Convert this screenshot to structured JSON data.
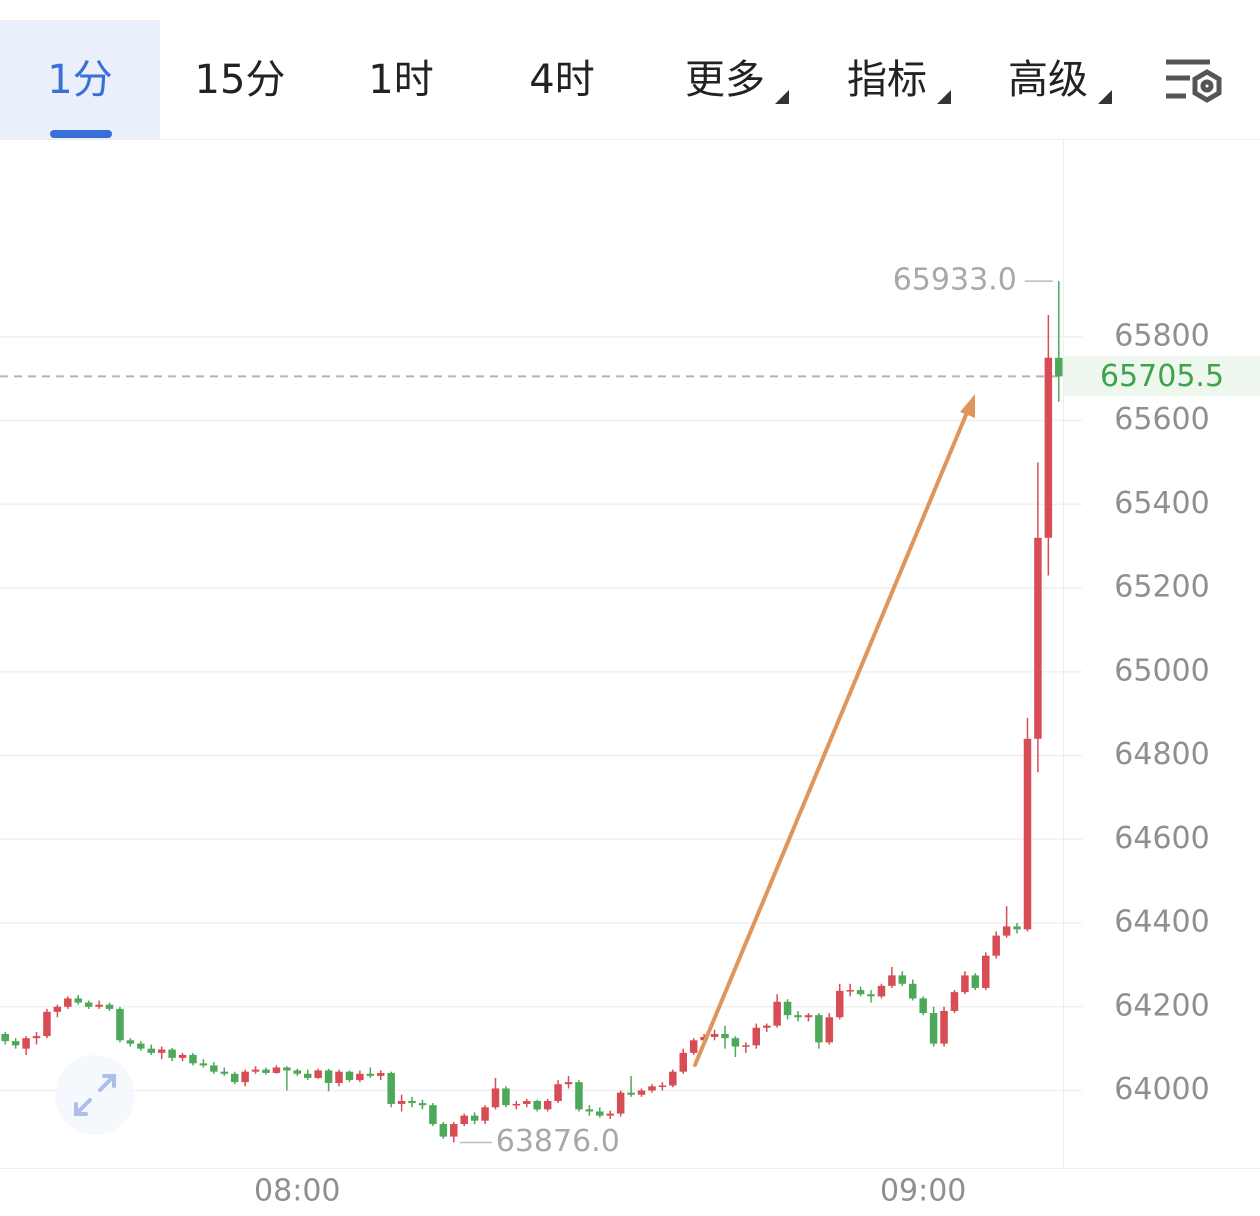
{
  "toolbar": {
    "tabs": [
      "1分",
      "15分",
      "1时",
      "4时",
      "更多",
      "指标",
      "高级"
    ]
  },
  "chart_data": {
    "type": "candlestick",
    "categories": [
      null,
      null,
      null,
      null,
      null,
      null,
      null,
      null,
      null,
      null,
      null,
      null,
      null,
      null,
      null,
      null,
      null,
      null,
      null,
      null,
      null,
      null,
      null,
      null,
      null,
      null,
      null,
      null,
      "08:00",
      null,
      null,
      null,
      null,
      null,
      null,
      null,
      null,
      null,
      null,
      null,
      null,
      null,
      null,
      null,
      null,
      null,
      null,
      null,
      null,
      null,
      null,
      null,
      null,
      null,
      null,
      null,
      null,
      null,
      null,
      null,
      null,
      null,
      null,
      null,
      null,
      null,
      null,
      null,
      null,
      null,
      null,
      null,
      null,
      null,
      null,
      null,
      null,
      null,
      null,
      null,
      null,
      null,
      null,
      null,
      null,
      null,
      null,
      null,
      "09:00",
      null,
      null,
      null,
      null,
      null,
      null,
      null,
      null,
      null,
      null,
      null,
      null,
      null
    ],
    "open": [
      64135,
      64118,
      64100,
      64125,
      64130,
      64188,
      64200,
      64220,
      64210,
      64200,
      64205,
      64195,
      64120,
      64112,
      64100,
      64090,
      64098,
      64078,
      64085,
      64065,
      64060,
      64045,
      64040,
      64020,
      64045,
      64050,
      64042,
      64055,
      64048,
      64040,
      64030,
      64048,
      64018,
      64045,
      64025,
      64040,
      64035,
      64042,
      63968,
      63975,
      63970,
      63965,
      63920,
      63890,
      63920,
      63940,
      63928,
      63960,
      64005,
      63965,
      63968,
      63975,
      63955,
      63975,
      64015,
      64020,
      63955,
      63950,
      63940,
      63945,
      63995,
      63990,
      64000,
      64010,
      64012,
      64045,
      64090,
      64120,
      64128,
      64135,
      64125,
      64105,
      64108,
      64150,
      64155,
      64212,
      64180,
      64175,
      64180,
      64115,
      64175,
      64238,
      64240,
      64230,
      64225,
      64250,
      64275,
      64255,
      64220,
      64185,
      64112,
      64190,
      64235,
      64275,
      64245,
      64322,
      64370,
      64392,
      64385,
      64840,
      65320,
      65750
    ],
    "high": [
      64140,
      64125,
      64130,
      64140,
      64195,
      64205,
      64225,
      64228,
      64215,
      64215,
      64210,
      64200,
      64125,
      64118,
      64110,
      64105,
      64102,
      64090,
      64090,
      64075,
      64068,
      64055,
      64045,
      64050,
      64058,
      64055,
      64060,
      64058,
      64052,
      64050,
      64052,
      64052,
      64050,
      64048,
      64048,
      64055,
      64048,
      64045,
      63990,
      63985,
      63978,
      63970,
      63925,
      63925,
      63945,
      63948,
      63965,
      64030,
      64010,
      63975,
      63980,
      63978,
      63980,
      64025,
      64035,
      64025,
      63965,
      63960,
      63952,
      64000,
      64035,
      64005,
      64015,
      64020,
      64050,
      64100,
      64125,
      64135,
      64145,
      64155,
      64130,
      64115,
      64160,
      64160,
      64230,
      64218,
      64190,
      64185,
      64185,
      64185,
      64255,
      64255,
      64248,
      64240,
      64255,
      64295,
      64285,
      64265,
      64225,
      64200,
      64200,
      64240,
      64285,
      64280,
      64330,
      64380,
      64440,
      64400,
      64890,
      65500,
      65852,
      65933
    ],
    "low": [
      64110,
      64100,
      64085,
      64110,
      64125,
      64175,
      64195,
      64205,
      64195,
      64195,
      64190,
      64115,
      64105,
      64095,
      64085,
      64075,
      64070,
      64070,
      64060,
      64055,
      64040,
      64035,
      64015,
      64010,
      64040,
      64038,
      64040,
      64000,
      64035,
      64025,
      64028,
      63998,
      64010,
      64020,
      64020,
      64030,
      64025,
      63960,
      63950,
      63960,
      63955,
      63915,
      63885,
      63876,
      63915,
      63920,
      63920,
      63955,
      63960,
      63955,
      63960,
      63950,
      63950,
      63970,
      64005,
      63950,
      63940,
      63935,
      63932,
      63938,
      63985,
      63985,
      63995,
      64000,
      64008,
      64040,
      64085,
      64110,
      64120,
      64100,
      64080,
      64090,
      64100,
      64140,
      64150,
      64170,
      64165,
      64165,
      64100,
      64110,
      64170,
      64225,
      64225,
      64210,
      64220,
      64245,
      64250,
      64215,
      64180,
      64105,
      64105,
      64185,
      64230,
      64240,
      64240,
      64315,
      64365,
      64375,
      64380,
      64760,
      65230,
      65645
    ],
    "close": [
      64118,
      64108,
      64125,
      64130,
      64188,
      64200,
      64220,
      64210,
      64200,
      64205,
      64195,
      64120,
      64112,
      64100,
      64090,
      64098,
      64078,
      64085,
      64065,
      64060,
      64045,
      64040,
      64020,
      64045,
      64050,
      64042,
      64055,
      64048,
      64040,
      64030,
      64048,
      64018,
      64045,
      64025,
      64040,
      64035,
      64042,
      63968,
      63975,
      63970,
      63965,
      63920,
      63890,
      63920,
      63940,
      63928,
      63960,
      64005,
      63965,
      63968,
      63975,
      63955,
      63975,
      64015,
      64020,
      63955,
      63950,
      63940,
      63945,
      63995,
      63990,
      64000,
      64010,
      64012,
      64045,
      64090,
      64120,
      64128,
      64135,
      64125,
      64105,
      64108,
      64150,
      64155,
      64212,
      64180,
      64175,
      64180,
      64115,
      64175,
      64238,
      64240,
      64230,
      64225,
      64250,
      64275,
      64255,
      64220,
      64185,
      64112,
      64190,
      64235,
      64275,
      64245,
      64322,
      64370,
      64392,
      64385,
      64840,
      65320,
      65750,
      65705.5
    ],
    "up_color": "#d84c55",
    "down_color": "#4ea85a",
    "ylim": [
      63815,
      66270
    ],
    "yticks": [
      64000,
      64200,
      64400,
      64600,
      64800,
      65000,
      65200,
      65400,
      65600,
      65800
    ],
    "grid": true,
    "last_price": 65705.5,
    "last_price_color": "#3ea34a",
    "high_marker": {
      "value": 65933,
      "label": "65933.0"
    },
    "low_marker": {
      "value": 63876,
      "label": "63876.0"
    }
  }
}
